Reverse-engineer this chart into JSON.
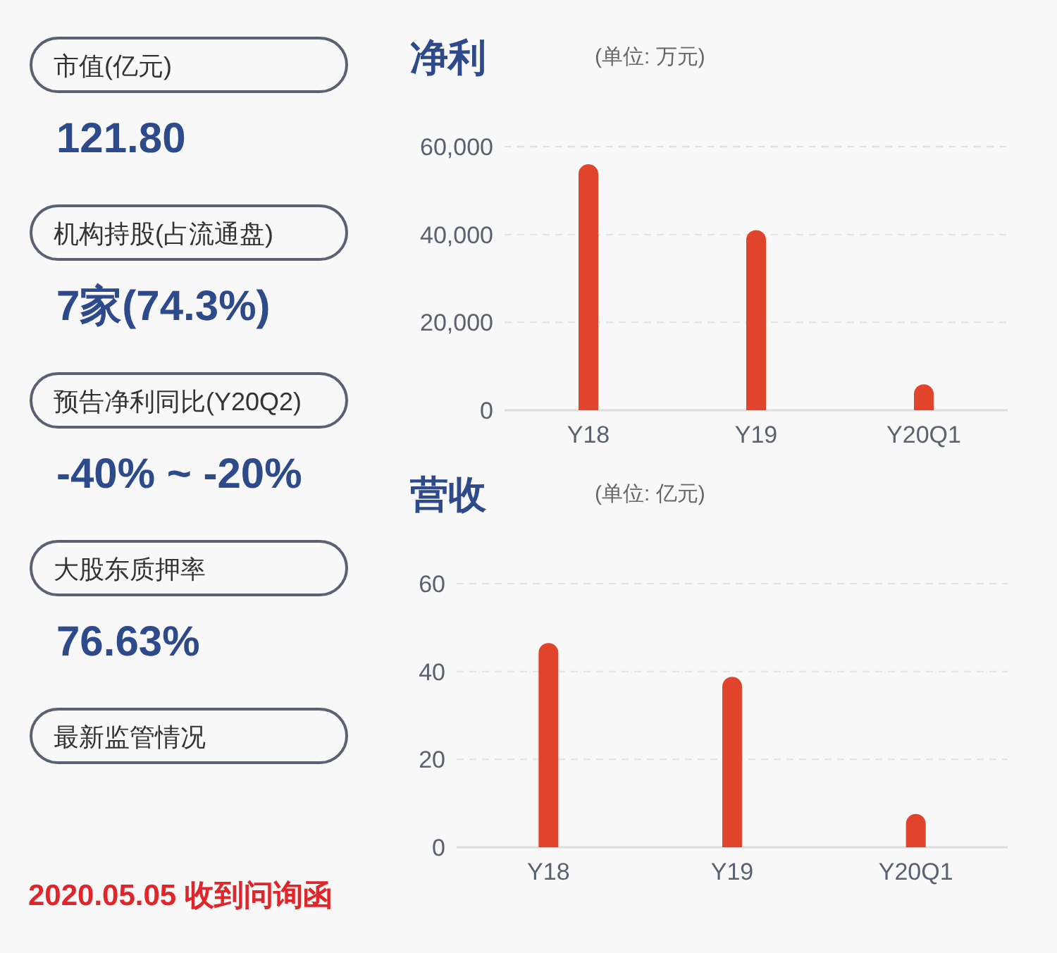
{
  "chart_data": [
    {
      "type": "other",
      "annotations": [
        "市值(亿元)",
        "121.80",
        "机构持股(占流通盘)",
        "7家(74.3%)",
        "预告净利同比(Y20Q2)",
        "-40% ~ -20%",
        "大股东质押率",
        "76.63%",
        "最新监管情况",
        "2020.05.05 收到问询函"
      ]
    },
    {
      "type": "bar",
      "title": "净利",
      "subtitle": "(单位: 万元)",
      "categories": [
        "Y18",
        "Y19",
        "Y20Q1"
      ],
      "values": [
        56000,
        41000,
        5900
      ],
      "color": "#e0452c",
      "ylim": [
        0,
        60000
      ],
      "yticks": [
        {
          "value": 0,
          "label": "0"
        },
        {
          "value": 20000,
          "label": "20,000"
        },
        {
          "value": 40000,
          "label": "40,000"
        },
        {
          "value": 60000,
          "label": "60,000"
        }
      ],
      "grid": "y"
    },
    {
      "type": "bar",
      "title": "营收",
      "subtitle": "(单位: 亿元)",
      "categories": [
        "Y18",
        "Y19",
        "Y20Q1"
      ],
      "values": [
        46.5,
        38.8,
        7.6
      ],
      "color": "#e0452c",
      "ylim": [
        0,
        60
      ],
      "yticks": [
        0,
        20,
        40,
        60
      ],
      "grid": "y"
    }
  ]
}
